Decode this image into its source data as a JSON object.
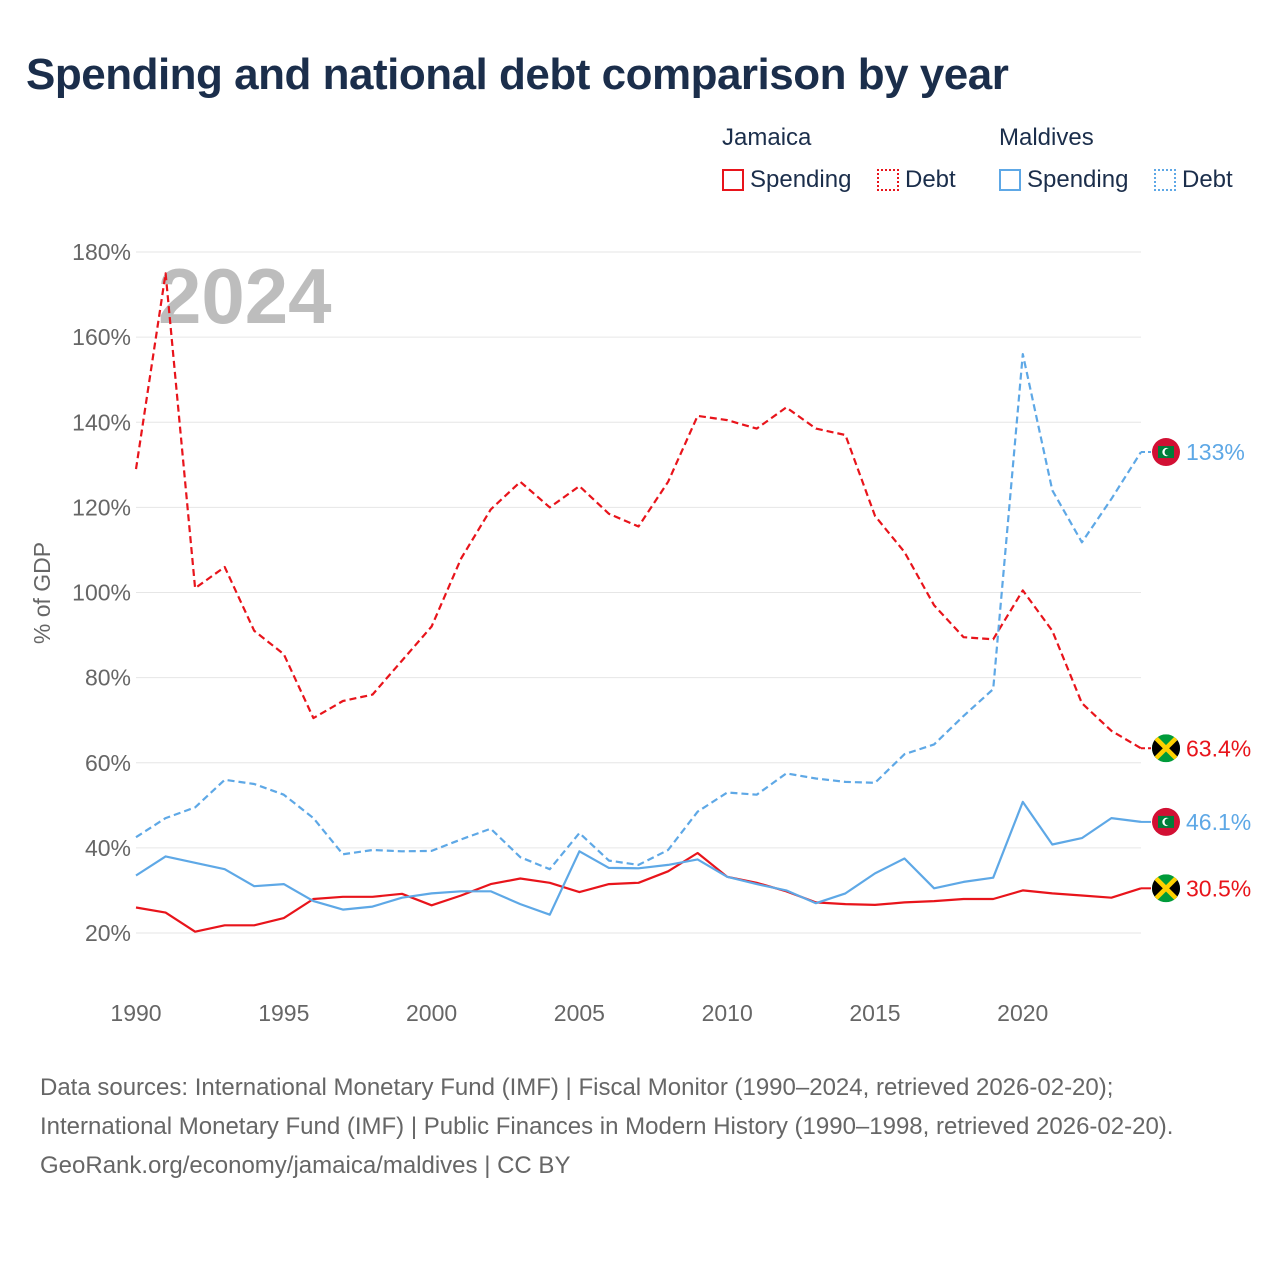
{
  "title": "Spending and national debt comparison by year",
  "legend": {
    "groups": [
      {
        "name": "Jamaica",
        "color": "#e8141b",
        "items": [
          "Spending",
          "Debt"
        ]
      },
      {
        "name": "Maldives",
        "color": "#5ea8e6",
        "items": [
          "Spending",
          "Debt"
        ]
      }
    ]
  },
  "year_watermark": "2024",
  "footer": {
    "sources": "Data sources: International Monetary Fund (IMF) | Fiscal Monitor (1990–2024, retrieved 2026-02-20); International Monetary Fund (IMF) | Public Finances in Modern History (1990–1998, retrieved 2026-02-20).",
    "credit": "GeoRank.org/economy/jamaica/maldives | CC BY"
  },
  "chart_data": {
    "type": "line",
    "ylabel": "% of GDP",
    "xlabel": "",
    "ylim": [
      10,
      180
    ],
    "yticks": [
      20,
      40,
      60,
      80,
      100,
      120,
      140,
      160,
      180
    ],
    "xticks": [
      1990,
      1995,
      2000,
      2005,
      2010,
      2015,
      2020
    ],
    "grid": true,
    "x": [
      1990,
      1991,
      1992,
      1993,
      1994,
      1995,
      1996,
      1997,
      1998,
      1999,
      2000,
      2001,
      2002,
      2003,
      2004,
      2005,
      2006,
      2007,
      2008,
      2009,
      2010,
      2011,
      2012,
      2013,
      2014,
      2015,
      2016,
      2017,
      2018,
      2019,
      2020,
      2021,
      2022,
      2023,
      2024
    ],
    "series": [
      {
        "name": "Jamaica Debt",
        "country": "Jamaica",
        "measure": "Debt",
        "color": "#e8141b",
        "style": "dashed",
        "end_label": "63.4%",
        "values": [
          129,
          175,
          101,
          106,
          91,
          85.5,
          70.5,
          74.5,
          76,
          84,
          92,
          108,
          119.5,
          126,
          120,
          125,
          118.5,
          115.5,
          126,
          141.5,
          140.5,
          138.5,
          143.5,
          138.5,
          137,
          118,
          109.5,
          97,
          89.5,
          89,
          100.5,
          91,
          74,
          67.5,
          63.4
        ]
      },
      {
        "name": "Jamaica Spending",
        "country": "Jamaica",
        "measure": "Spending",
        "color": "#e8141b",
        "style": "solid",
        "end_label": "30.5%",
        "values": [
          26,
          24.8,
          20.3,
          21.8,
          21.8,
          23.5,
          28,
          28.5,
          28.5,
          29.2,
          26.5,
          28.8,
          31.5,
          32.8,
          31.8,
          29.6,
          31.5,
          31.8,
          34.5,
          38.8,
          33.2,
          31.8,
          29.8,
          27.2,
          26.8,
          26.6,
          27.2,
          27.5,
          28,
          28,
          30,
          29.3,
          28.8,
          28.3,
          30.5
        ]
      },
      {
        "name": "Maldives Debt",
        "country": "Maldives",
        "measure": "Debt",
        "color": "#5ea8e6",
        "style": "dashed",
        "end_label": "133%",
        "values": [
          42.5,
          47,
          49.5,
          56,
          55,
          52.5,
          47,
          38.5,
          39.5,
          39.2,
          39.3,
          42,
          44.5,
          37.8,
          35,
          43.5,
          37,
          36,
          39.5,
          48.5,
          53,
          52.5,
          57.5,
          56.3,
          55.5,
          55.3,
          62,
          64.3,
          71,
          77.3,
          156,
          124,
          111.8,
          122,
          133
        ]
      },
      {
        "name": "Maldives Spending",
        "country": "Maldives",
        "measure": "Spending",
        "color": "#5ea8e6",
        "style": "solid",
        "end_label": "46.1%",
        "values": [
          33.5,
          38,
          36.5,
          35,
          31,
          31.5,
          27.5,
          25.5,
          26.2,
          28.3,
          29.3,
          29.8,
          29.8,
          26.8,
          24.3,
          39.2,
          35.3,
          35.2,
          36,
          37.3,
          33.2,
          31.5,
          30,
          27,
          29.3,
          34,
          37.5,
          30.5,
          32,
          33,
          50.8,
          40.8,
          42.3,
          47,
          46.1
        ]
      }
    ]
  }
}
